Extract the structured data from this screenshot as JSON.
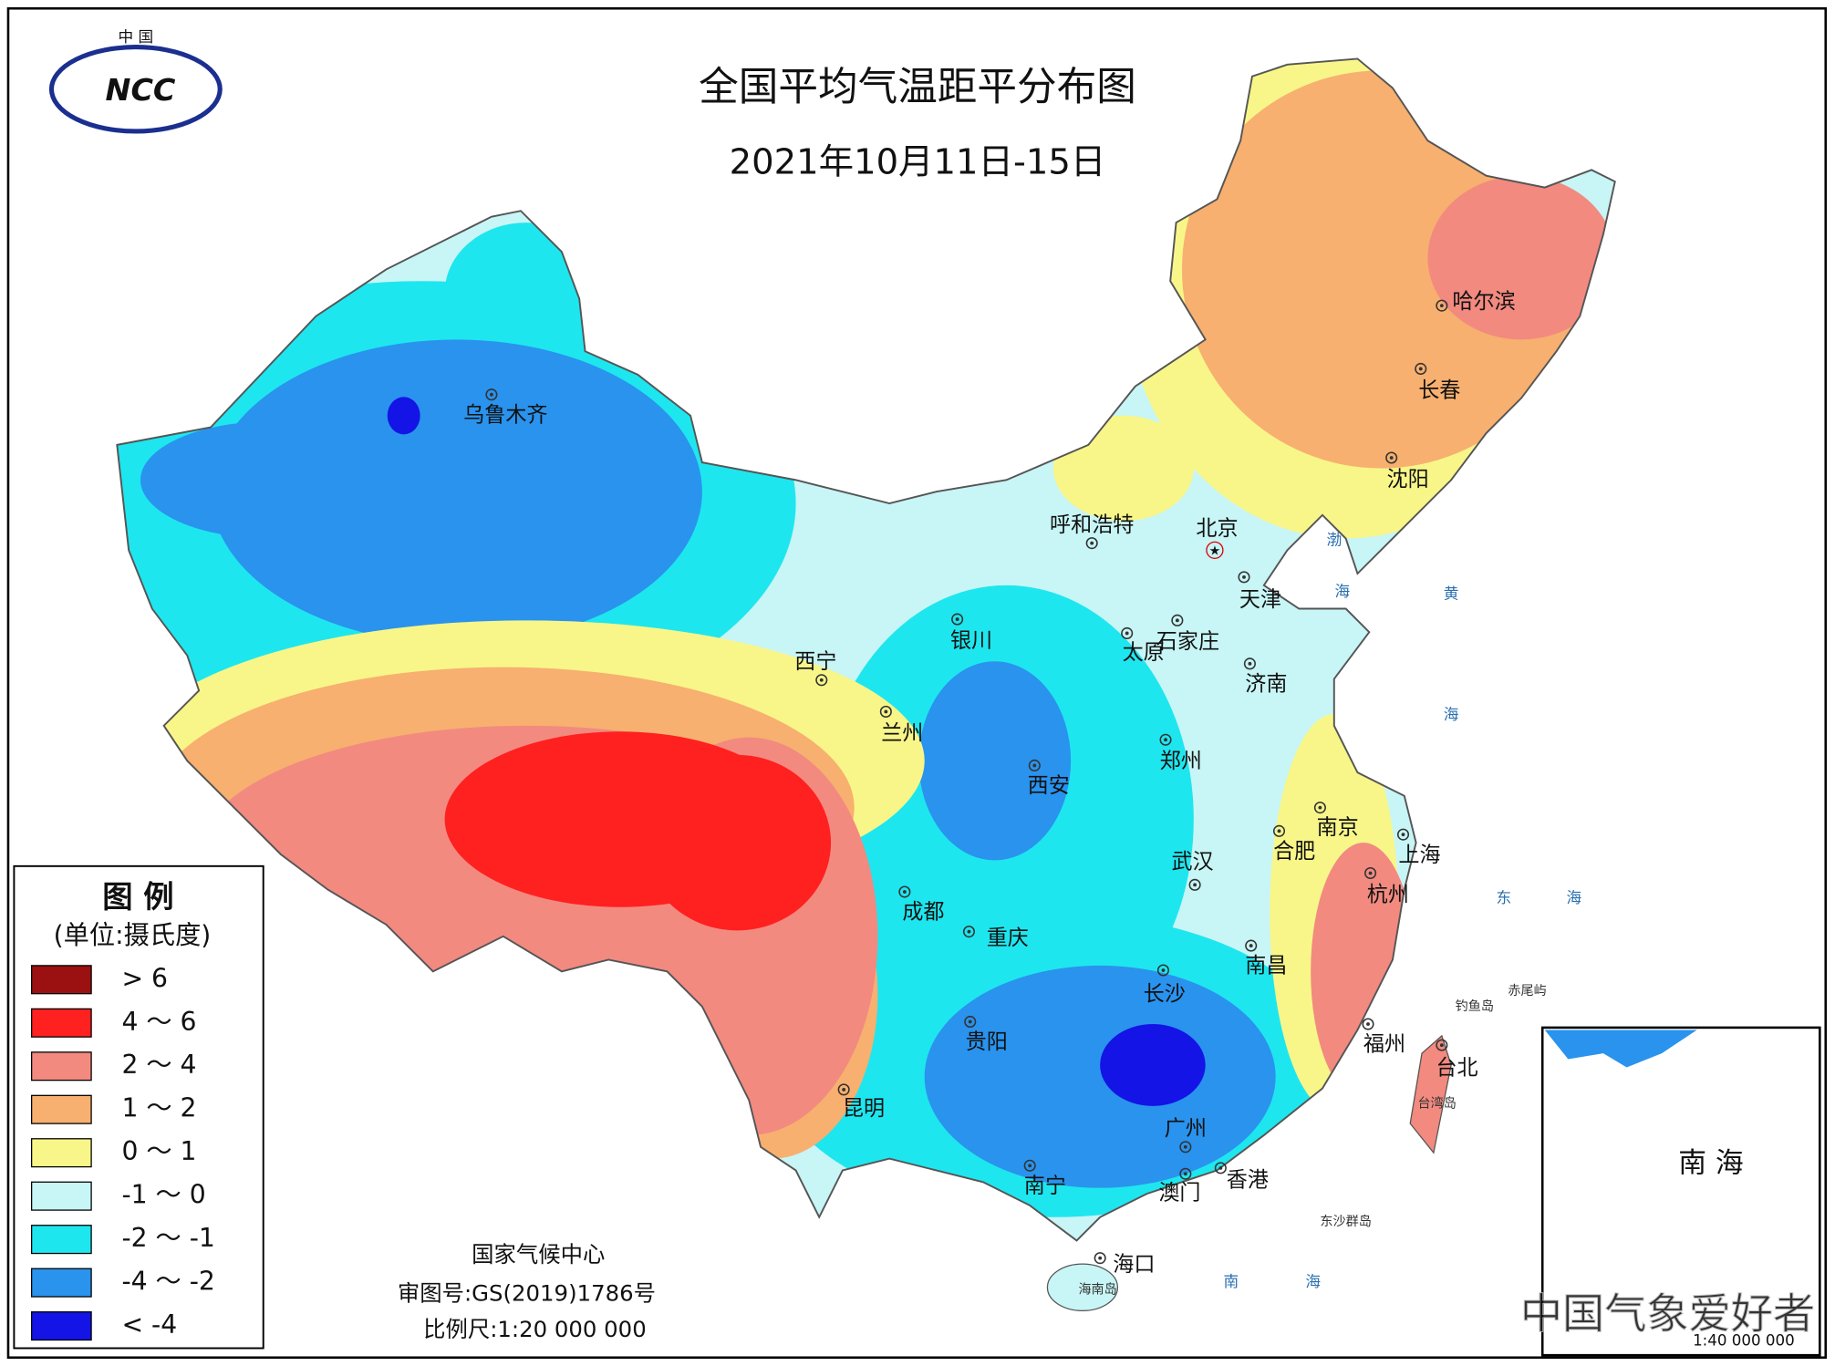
{
  "logo": {
    "top": "中 国",
    "text": "NCC"
  },
  "title": "全国平均气温距平分布图",
  "subtitle": "2021年10月11日-15日",
  "legend": {
    "title": "图 例",
    "unit": "(单位:摄氏度)",
    "items": [
      {
        "label": "> 6",
        "color": "#9b1111"
      },
      {
        "label": "4 ～ 6",
        "color": "#ff2020"
      },
      {
        "label": "2 ～ 4",
        "color": "#f28a80"
      },
      {
        "label": "1 ～ 2",
        "color": "#f7b06f"
      },
      {
        "label": "0 ～ 1",
        "color": "#f8f689"
      },
      {
        "label": "-1 ～ 0",
        "color": "#c8f5f5"
      },
      {
        "label": "-2 ～ -1",
        "color": "#1ee6ef"
      },
      {
        "label": "-4 ～ -2",
        "color": "#2993ee"
      },
      {
        "label": "< -4",
        "color": "#1414e6"
      }
    ]
  },
  "cities": [
    "乌鲁木齐",
    "呼和浩特",
    "北京",
    "天津",
    "石家庄",
    "太原",
    "银川",
    "西宁",
    "济南",
    "兰州",
    "郑州",
    "西安",
    "南京",
    "合肥",
    "上海",
    "武汉",
    "杭州",
    "成都",
    "重庆",
    "南昌",
    "长沙",
    "福州",
    "贵阳",
    "台北",
    "昆明",
    "广州",
    "香港",
    "南宁",
    "澳门",
    "海口",
    "哈尔滨",
    "长春",
    "沈阳"
  ],
  "places": [
    "钓鱼岛",
    "赤尾屿",
    "台湾岛",
    "海南岛",
    "东沙群岛"
  ],
  "seas": [
    "渤",
    "海",
    "黄",
    "海",
    "东",
    "海",
    "南",
    "海"
  ],
  "inset": {
    "label": "南 海",
    "scale": "1:40 000 000"
  },
  "footer": [
    "国家气候中心",
    "审图号:GS(2019)1786号",
    "比例尺:1:20 000 000"
  ],
  "watermark": "中国气象爱好者"
}
